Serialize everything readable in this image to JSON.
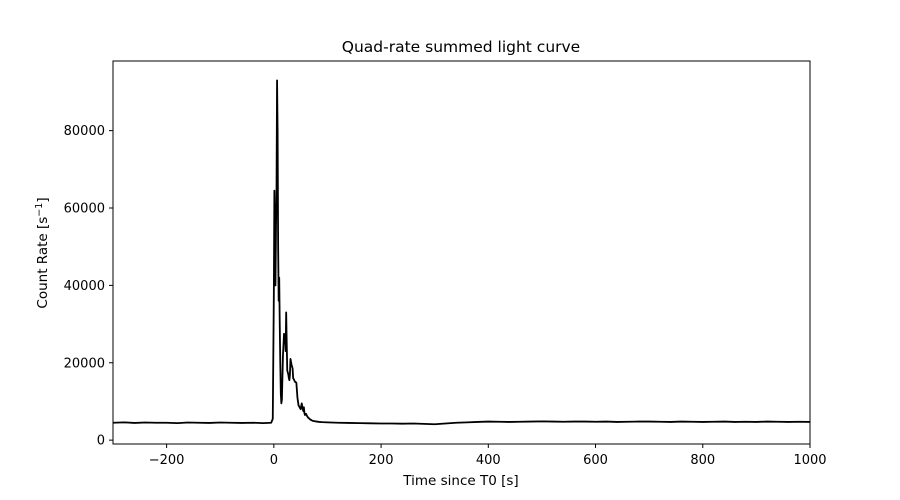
{
  "chart_data": {
    "type": "line",
    "title": "Quad-rate summed light curve",
    "xlabel": "Time since T0 [s]",
    "ylabel": {
      "base": "Count Rate [s",
      "superscript": "−1",
      "close": "]"
    },
    "xlim": [
      -300,
      1000
    ],
    "ylim": [
      -1000,
      98000
    ],
    "x_ticks": [
      -200,
      0,
      200,
      400,
      600,
      800,
      1000
    ],
    "y_ticks": [
      0,
      20000,
      40000,
      60000,
      80000
    ],
    "grid": false,
    "legend": "none",
    "line_color": "#000000",
    "series": [
      {
        "x": [
          -300,
          -280,
          -260,
          -240,
          -220,
          -200,
          -180,
          -160,
          -140,
          -120,
          -100,
          -80,
          -60,
          -40,
          -20,
          -5,
          -2,
          0,
          1,
          2,
          3,
          4,
          5,
          6,
          7,
          8,
          9,
          10,
          11,
          12,
          13,
          14,
          15,
          17,
          19,
          20,
          21,
          22,
          23,
          24,
          25,
          26,
          27,
          28,
          29,
          30,
          31,
          33,
          35,
          36,
          37,
          38,
          39,
          40,
          41,
          42,
          44,
          46,
          48,
          50,
          52,
          54,
          55,
          56,
          57,
          58,
          60,
          62,
          64,
          66,
          68,
          70,
          72,
          75,
          80,
          85,
          90,
          100,
          120,
          140,
          160,
          180,
          200,
          220,
          240,
          260,
          280,
          300,
          320,
          340,
          360,
          380,
          400,
          420,
          440,
          460,
          480,
          500,
          520,
          540,
          560,
          580,
          600,
          620,
          640,
          660,
          680,
          700,
          720,
          740,
          760,
          780,
          800,
          820,
          840,
          860,
          880,
          900,
          920,
          940,
          960,
          980,
          1000
        ],
        "y": [
          4500,
          4600,
          4450,
          4550,
          4500,
          4500,
          4400,
          4550,
          4500,
          4450,
          4550,
          4500,
          4450,
          4500,
          4400,
          4500,
          5500,
          38000,
          64500,
          48000,
          40000,
          55000,
          65000,
          93000,
          80000,
          50000,
          36000,
          42000,
          30000,
          20000,
          12000,
          9500,
          10500,
          22000,
          27500,
          26000,
          27000,
          23000,
          33000,
          25000,
          18000,
          17500,
          17000,
          16000,
          15500,
          17000,
          21000,
          19500,
          18500,
          16000,
          15800,
          15500,
          15200,
          15000,
          15000,
          14800,
          11000,
          9000,
          8500,
          8000,
          9500,
          8000,
          7500,
          8500,
          7000,
          6500,
          6800,
          6200,
          5800,
          5600,
          5300,
          5200,
          5000,
          4900,
          4800,
          4700,
          4650,
          4600,
          4500,
          4450,
          4400,
          4350,
          4300,
          4300,
          4250,
          4300,
          4200,
          4100,
          4300,
          4500,
          4600,
          4700,
          4800,
          4750,
          4700,
          4750,
          4800,
          4850,
          4800,
          4750,
          4800,
          4800,
          4750,
          4800,
          4700,
          4750,
          4800,
          4800,
          4750,
          4700,
          4800,
          4750,
          4700,
          4750,
          4800,
          4700,
          4750,
          4700,
          4800,
          4750,
          4700,
          4750,
          4700
        ]
      }
    ]
  }
}
